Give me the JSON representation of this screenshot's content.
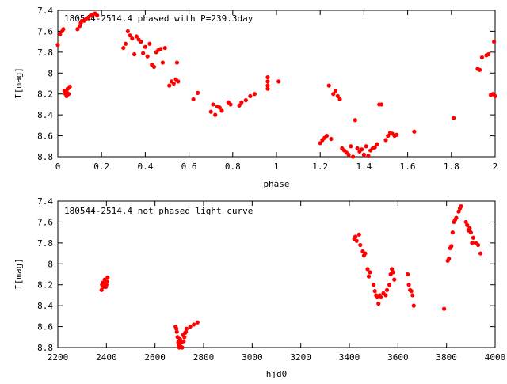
{
  "chart_data": [
    {
      "type": "scatter",
      "title": "180544-2514.4 phased with P=239.3day",
      "xlabel": "phase",
      "ylabel": "I[mag]",
      "xlim": [
        0,
        2
      ],
      "ylim": [
        7.4,
        8.8
      ],
      "y_inverted": true,
      "grid": false,
      "xticks": [
        "0",
        "0.2",
        "0.4",
        "0.6",
        "0.8",
        "1",
        "1.2",
        "1.4",
        "1.6",
        "1.8",
        "2"
      ],
      "xtick_values": [
        0,
        0.2,
        0.4,
        0.6,
        0.8,
        1.0,
        1.2,
        1.4,
        1.6,
        1.8,
        2.0
      ],
      "yticks": [
        "7.4",
        "7.6",
        "7.8",
        "8",
        "8.2",
        "8.4",
        "8.6",
        "8.8"
      ],
      "ytick_values": [
        7.4,
        7.6,
        7.8,
        8.0,
        8.2,
        8.4,
        8.6,
        8.8
      ],
      "marker_color": "#ff0000",
      "points": [
        [
          0.0,
          7.73
        ],
        [
          0.01,
          7.63
        ],
        [
          0.02,
          7.6
        ],
        [
          0.025,
          7.58
        ],
        [
          0.03,
          8.17
        ],
        [
          0.035,
          8.2
        ],
        [
          0.04,
          8.22
        ],
        [
          0.04,
          8.18
        ],
        [
          0.045,
          8.15
        ],
        [
          0.05,
          8.2
        ],
        [
          0.055,
          8.13
        ],
        [
          0.09,
          7.58
        ],
        [
          0.1,
          7.55
        ],
        [
          0.105,
          7.52
        ],
        [
          0.11,
          7.5
        ],
        [
          0.12,
          7.5
        ],
        [
          0.13,
          7.48
        ],
        [
          0.14,
          7.47
        ],
        [
          0.15,
          7.45
        ],
        [
          0.16,
          7.44
        ],
        [
          0.17,
          7.43
        ],
        [
          0.18,
          7.45
        ],
        [
          0.3,
          7.76
        ],
        [
          0.31,
          7.72
        ],
        [
          0.32,
          7.6
        ],
        [
          0.33,
          7.64
        ],
        [
          0.34,
          7.67
        ],
        [
          0.35,
          7.82
        ],
        [
          0.36,
          7.65
        ],
        [
          0.37,
          7.68
        ],
        [
          0.38,
          7.7
        ],
        [
          0.39,
          7.81
        ],
        [
          0.4,
          7.75
        ],
        [
          0.41,
          7.84
        ],
        [
          0.42,
          7.72
        ],
        [
          0.43,
          7.92
        ],
        [
          0.44,
          7.94
        ],
        [
          0.45,
          7.8
        ],
        [
          0.46,
          7.78
        ],
        [
          0.47,
          7.77
        ],
        [
          0.48,
          7.9
        ],
        [
          0.49,
          7.76
        ],
        [
          0.51,
          8.12
        ],
        [
          0.52,
          8.08
        ],
        [
          0.53,
          8.1
        ],
        [
          0.54,
          8.06
        ],
        [
          0.545,
          7.9
        ],
        [
          0.55,
          8.08
        ],
        [
          0.62,
          8.25
        ],
        [
          0.64,
          8.19
        ],
        [
          0.7,
          8.37
        ],
        [
          0.71,
          8.3
        ],
        [
          0.72,
          8.4
        ],
        [
          0.73,
          8.32
        ],
        [
          0.74,
          8.33
        ],
        [
          0.75,
          8.36
        ],
        [
          0.78,
          8.28
        ],
        [
          0.79,
          8.3
        ],
        [
          0.83,
          8.31
        ],
        [
          0.84,
          8.28
        ],
        [
          0.86,
          8.26
        ],
        [
          0.88,
          8.22
        ],
        [
          0.9,
          8.2
        ],
        [
          0.96,
          8.04
        ],
        [
          0.96,
          8.08
        ],
        [
          0.96,
          8.12
        ],
        [
          0.96,
          8.15
        ],
        [
          1.01,
          8.08
        ],
        [
          1.2,
          8.67
        ],
        [
          1.21,
          8.64
        ],
        [
          1.22,
          8.62
        ],
        [
          1.23,
          8.6
        ],
        [
          1.24,
          8.12
        ],
        [
          1.25,
          8.63
        ],
        [
          1.26,
          8.2
        ],
        [
          1.27,
          8.17
        ],
        [
          1.28,
          8.22
        ],
        [
          1.29,
          8.25
        ],
        [
          1.3,
          8.72
        ],
        [
          1.31,
          8.74
        ],
        [
          1.32,
          8.76
        ],
        [
          1.33,
          8.78
        ],
        [
          1.34,
          8.7
        ],
        [
          1.35,
          8.8
        ],
        [
          1.36,
          8.45
        ],
        [
          1.37,
          8.72
        ],
        [
          1.38,
          8.75
        ],
        [
          1.39,
          8.73
        ],
        [
          1.4,
          8.78
        ],
        [
          1.41,
          8.7
        ],
        [
          1.42,
          8.79
        ],
        [
          1.43,
          8.74
        ],
        [
          1.44,
          8.72
        ],
        [
          1.45,
          8.71
        ],
        [
          1.46,
          8.68
        ],
        [
          1.47,
          8.3
        ],
        [
          1.48,
          8.3
        ],
        [
          1.5,
          8.64
        ],
        [
          1.51,
          8.6
        ],
        [
          1.52,
          8.57
        ],
        [
          1.53,
          8.58
        ],
        [
          1.54,
          8.6
        ],
        [
          1.55,
          8.59
        ],
        [
          1.63,
          8.56
        ],
        [
          1.81,
          8.43
        ],
        [
          1.92,
          7.96
        ],
        [
          1.93,
          7.97
        ],
        [
          1.94,
          7.85
        ],
        [
          1.96,
          7.83
        ],
        [
          1.97,
          7.82
        ],
        [
          1.98,
          8.21
        ],
        [
          1.99,
          8.2
        ],
        [
          2.0,
          8.22
        ],
        [
          1.995,
          7.7
        ]
      ]
    },
    {
      "type": "scatter",
      "title": "180544-2514.4 not phased light curve",
      "xlabel": "hjd0",
      "ylabel": "I[mag]",
      "xlim": [
        2200,
        4000
      ],
      "ylim": [
        7.4,
        8.8
      ],
      "y_inverted": true,
      "grid": false,
      "xticks": [
        "2200",
        "2400",
        "2600",
        "2800",
        "3000",
        "3200",
        "3400",
        "3600",
        "3800",
        "4000"
      ],
      "xtick_values": [
        2200,
        2400,
        2600,
        2800,
        3000,
        3200,
        3400,
        3600,
        3800,
        4000
      ],
      "yticks": [
        "7.4",
        "7.6",
        "7.8",
        "8",
        "8.2",
        "8.4",
        "8.6",
        "8.8"
      ],
      "ytick_values": [
        7.4,
        7.6,
        7.8,
        8.0,
        8.2,
        8.4,
        8.6,
        8.8
      ],
      "marker_color": "#ff0000",
      "points": [
        [
          2380,
          8.25
        ],
        [
          2382,
          8.2
        ],
        [
          2385,
          8.18
        ],
        [
          2388,
          8.22
        ],
        [
          2390,
          8.2
        ],
        [
          2393,
          8.15
        ],
        [
          2396,
          8.19
        ],
        [
          2398,
          8.22
        ],
        [
          2400,
          8.2
        ],
        [
          2403,
          8.17
        ],
        [
          2405,
          8.13
        ],
        [
          2685,
          8.6
        ],
        [
          2688,
          8.62
        ],
        [
          2690,
          8.65
        ],
        [
          2693,
          8.7
        ],
        [
          2696,
          8.75
        ],
        [
          2698,
          8.78
        ],
        [
          2700,
          8.8
        ],
        [
          2703,
          8.72
        ],
        [
          2706,
          8.79
        ],
        [
          2709,
          8.75
        ],
        [
          2712,
          8.8
        ],
        [
          2715,
          8.68
        ],
        [
          2718,
          8.74
        ],
        [
          2721,
          8.7
        ],
        [
          2724,
          8.66
        ],
        [
          2727,
          8.65
        ],
        [
          2730,
          8.62
        ],
        [
          2745,
          8.6
        ],
        [
          2760,
          8.58
        ],
        [
          2775,
          8.56
        ],
        [
          3420,
          7.76
        ],
        [
          3425,
          7.74
        ],
        [
          3430,
          7.78
        ],
        [
          3440,
          7.72
        ],
        [
          3445,
          7.82
        ],
        [
          3455,
          7.88
        ],
        [
          3460,
          7.92
        ],
        [
          3465,
          7.9
        ],
        [
          3475,
          8.05
        ],
        [
          3480,
          8.12
        ],
        [
          3485,
          8.08
        ],
        [
          3500,
          8.2
        ],
        [
          3505,
          8.26
        ],
        [
          3510,
          8.3
        ],
        [
          3515,
          8.32
        ],
        [
          3520,
          8.38
        ],
        [
          3525,
          8.3
        ],
        [
          3530,
          8.32
        ],
        [
          3540,
          8.28
        ],
        [
          3550,
          8.3
        ],
        [
          3555,
          8.25
        ],
        [
          3565,
          8.2
        ],
        [
          3570,
          8.1
        ],
        [
          3575,
          8.05
        ],
        [
          3580,
          8.08
        ],
        [
          3585,
          8.15
        ],
        [
          3640,
          8.1
        ],
        [
          3645,
          8.2
        ],
        [
          3650,
          8.25
        ],
        [
          3655,
          8.26
        ],
        [
          3660,
          8.3
        ],
        [
          3665,
          8.4
        ],
        [
          3790,
          8.43
        ],
        [
          3805,
          7.97
        ],
        [
          3810,
          7.95
        ],
        [
          3815,
          7.85
        ],
        [
          3820,
          7.83
        ],
        [
          3825,
          7.7
        ],
        [
          3830,
          7.6
        ],
        [
          3835,
          7.58
        ],
        [
          3840,
          7.56
        ],
        [
          3850,
          7.5
        ],
        [
          3855,
          7.47
        ],
        [
          3860,
          7.45
        ],
        [
          3880,
          7.6
        ],
        [
          3885,
          7.63
        ],
        [
          3890,
          7.68
        ],
        [
          3895,
          7.66
        ],
        [
          3900,
          7.7
        ],
        [
          3905,
          7.8
        ],
        [
          3910,
          7.75
        ],
        [
          3920,
          7.8
        ],
        [
          3930,
          7.82
        ],
        [
          3940,
          7.9
        ]
      ]
    }
  ]
}
